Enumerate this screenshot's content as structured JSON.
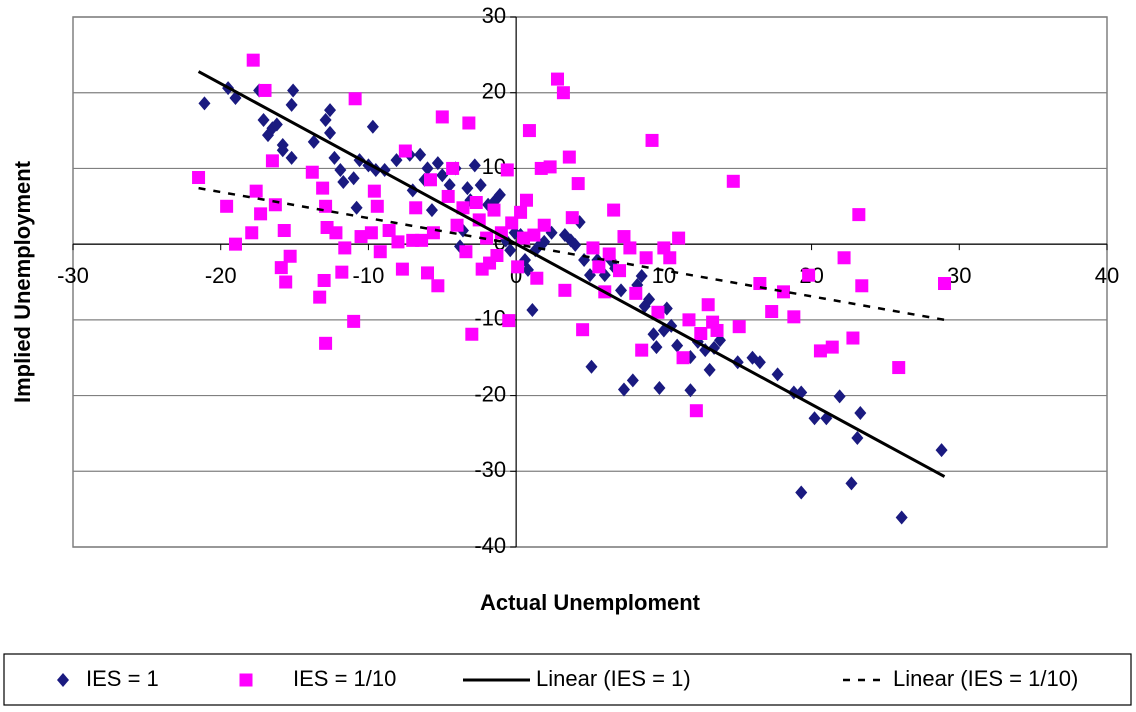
{
  "chart_data": {
    "type": "scatter",
    "x_label": "Actual Unemploment",
    "y_label": "Implied Unemployment",
    "xlim": [
      -30,
      40
    ],
    "ylim": [
      -40,
      30
    ],
    "xticks": [
      -30,
      -20,
      -10,
      0,
      10,
      20,
      30,
      40
    ],
    "yticks": [
      -40,
      -30,
      -20,
      -10,
      0,
      10,
      20,
      30
    ],
    "grid": true,
    "legend": "bottom",
    "series": [
      {
        "name": "IES = 1",
        "color": "#1a1a80",
        "marker": "diamond",
        "x": [
          -21.1,
          -19.5,
          -19.0,
          -17.4,
          -17.1,
          -16.8,
          -16.5,
          -16.2,
          -15.8,
          -15.8,
          -15.2,
          -15.1,
          -15.2,
          -13.7,
          -12.9,
          -12.6,
          -12.6,
          -12.3,
          -11.9,
          -11.7,
          -11.0,
          -10.8,
          -9.7,
          -10.6,
          -10.0,
          -9.5,
          -8.9,
          -8.1,
          -7.2,
          -7.0,
          -6.5,
          -6.2,
          -6.0,
          -5.7,
          -5.3,
          -5.0,
          -4.5,
          -4.1,
          -3.8,
          -3.6,
          -3.3,
          -3.1,
          -2.8,
          -2.4,
          -1.9,
          -1.4,
          -1.1,
          -0.7,
          -0.4,
          -0.1,
          0.3,
          0.6,
          0.8,
          1.3,
          1.6,
          1.9,
          1.1,
          2.4,
          3.3,
          3.7,
          4.0,
          4.3,
          4.6,
          5.0,
          5.1,
          5.5,
          6.0,
          6.4,
          6.7,
          7.1,
          7.3,
          7.9,
          8.2,
          8.5,
          8.7,
          9.0,
          9.3,
          9.5,
          9.7,
          10.0,
          10.2,
          10.5,
          10.9,
          11.8,
          11.8,
          12.3,
          12.8,
          13.1,
          13.4,
          13.8,
          15.0,
          16.0,
          16.5,
          17.7,
          18.8,
          19.3,
          19.3,
          20.2,
          21.0,
          21.9,
          22.7,
          23.1,
          23.3,
          26.1,
          28.8
        ],
        "values": [
          18.6,
          20.6,
          19.3,
          20.3,
          16.4,
          14.4,
          15.3,
          15.8,
          13.1,
          12.4,
          18.4,
          20.3,
          11.4,
          13.5,
          16.4,
          17.7,
          14.7,
          11.4,
          9.8,
          8.2,
          8.7,
          4.8,
          15.5,
          11.1,
          10.4,
          9.8,
          9.8,
          11.1,
          11.8,
          7.1,
          11.8,
          8.5,
          10.0,
          4.5,
          10.7,
          9.1,
          7.8,
          10.0,
          -0.3,
          1.8,
          7.4,
          5.8,
          10.4,
          7.8,
          5.2,
          5.8,
          6.5,
          0.5,
          -0.8,
          1.5,
          1.2,
          -2.1,
          -3.4,
          -0.8,
          -0.1,
          0.3,
          -8.7,
          1.5,
          1.2,
          0.5,
          -0.1,
          2.9,
          -2.1,
          -4.1,
          -16.2,
          -2.1,
          -4.1,
          -2.1,
          -3.2,
          -6.1,
          -19.2,
          -18.0,
          -5.4,
          -4.2,
          -8.2,
          -7.3,
          -11.9,
          -13.6,
          -19.0,
          -11.4,
          -8.5,
          -10.8,
          -13.4,
          -19.3,
          -14.9,
          -12.9,
          -14.0,
          -16.6,
          -13.7,
          -12.7,
          -15.6,
          -15.0,
          -15.6,
          -17.2,
          -19.6,
          -19.6,
          -32.8,
          -23.0,
          -23.0,
          -20.1,
          -31.6,
          -25.6,
          -22.3,
          -36.1,
          -27.2
        ]
      },
      {
        "name": "IES = 1/10",
        "color": "#ff00ff",
        "marker": "square",
        "x": [
          -21.5,
          -19.6,
          -19.0,
          -17.8,
          -17.6,
          -17.3,
          -17.9,
          -17.0,
          -16.5,
          -16.3,
          -15.9,
          -15.6,
          -15.7,
          -15.3,
          -13.8,
          -13.3,
          -13.1,
          -12.9,
          -12.8,
          -13.0,
          -12.9,
          -12.2,
          -11.8,
          -11.6,
          -11.0,
          -10.9,
          -10.5,
          -9.8,
          -9.6,
          -9.4,
          -9.2,
          -8.6,
          -8.0,
          -7.7,
          -7.5,
          -7.0,
          -6.8,
          -6.4,
          -6.0,
          -5.8,
          -5.6,
          -5.3,
          -5.0,
          -4.6,
          -4.3,
          -4.0,
          -3.6,
          -3.4,
          -3.2,
          -3.0,
          -2.7,
          -2.5,
          -2.3,
          -2.0,
          -1.8,
          -1.5,
          -1.3,
          -1.0,
          -0.6,
          -0.5,
          -0.3,
          0.1,
          0.3,
          0.5,
          0.7,
          0.9,
          1.2,
          1.4,
          1.7,
          1.9,
          2.3,
          2.8,
          3.2,
          3.6,
          3.8,
          4.2,
          4.5,
          3.3,
          5.2,
          5.6,
          6.0,
          6.3,
          6.6,
          7.0,
          7.3,
          7.7,
          8.1,
          8.5,
          8.8,
          9.2,
          9.6,
          10.0,
          10.4,
          11.0,
          11.3,
          11.7,
          12.2,
          12.5,
          13.0,
          13.3,
          13.6,
          14.7,
          15.1,
          16.5,
          17.3,
          18.1,
          18.8,
          19.8,
          20.6,
          21.4,
          22.2,
          22.8,
          23.4,
          23.2,
          25.9,
          29.0
        ],
        "values": [
          8.8,
          5.0,
          0.0,
          24.3,
          7.0,
          4.0,
          1.5,
          20.3,
          11.0,
          5.2,
          -3.1,
          -5.0,
          1.8,
          -1.6,
          9.5,
          -7.0,
          7.4,
          5.0,
          2.2,
          -4.8,
          -13.1,
          1.5,
          -3.7,
          -0.5,
          -10.2,
          19.2,
          1.0,
          1.5,
          7.0,
          5.0,
          -1.0,
          1.8,
          0.3,
          -3.3,
          12.3,
          0.5,
          4.8,
          0.5,
          -3.8,
          8.5,
          1.5,
          -5.5,
          16.8,
          6.3,
          10.0,
          2.5,
          4.8,
          -1.0,
          16.0,
          -11.9,
          5.5,
          3.2,
          -3.3,
          0.8,
          -2.5,
          4.5,
          -1.5,
          1.5,
          9.8,
          -10.1,
          2.8,
          -3.0,
          4.2,
          0.8,
          5.8,
          15.0,
          1.2,
          -4.5,
          10.0,
          2.5,
          10.2,
          21.8,
          20.0,
          11.5,
          3.5,
          8.0,
          -11.3,
          -6.1,
          -0.5,
          -3.0,
          -6.3,
          -1.3,
          4.5,
          -3.5,
          1.0,
          -0.5,
          -6.5,
          -14.0,
          -1.8,
          13.7,
          -9.0,
          -0.5,
          -1.8,
          0.8,
          -15.0,
          -10.0,
          -22.0,
          -11.8,
          -8.0,
          -10.3,
          -11.4,
          8.3,
          -10.9,
          -5.2,
          -8.9,
          -6.3,
          -9.6,
          -4.1,
          -14.1,
          -13.6,
          -1.8,
          -12.4,
          -5.5,
          3.9,
          -16.3,
          -5.2
        ]
      },
      {
        "name": "Linear (IES = 1)",
        "color": "#000000",
        "marker": "line",
        "dash": false,
        "x": [
          -21.5,
          29.0
        ],
        "values": [
          22.8,
          -30.7
        ]
      },
      {
        "name": "Linear (IES = 1/10)",
        "color": "#000000",
        "marker": "line",
        "dash": true,
        "x": [
          -21.5,
          29.0
        ],
        "values": [
          7.4,
          -10.0
        ]
      }
    ]
  }
}
